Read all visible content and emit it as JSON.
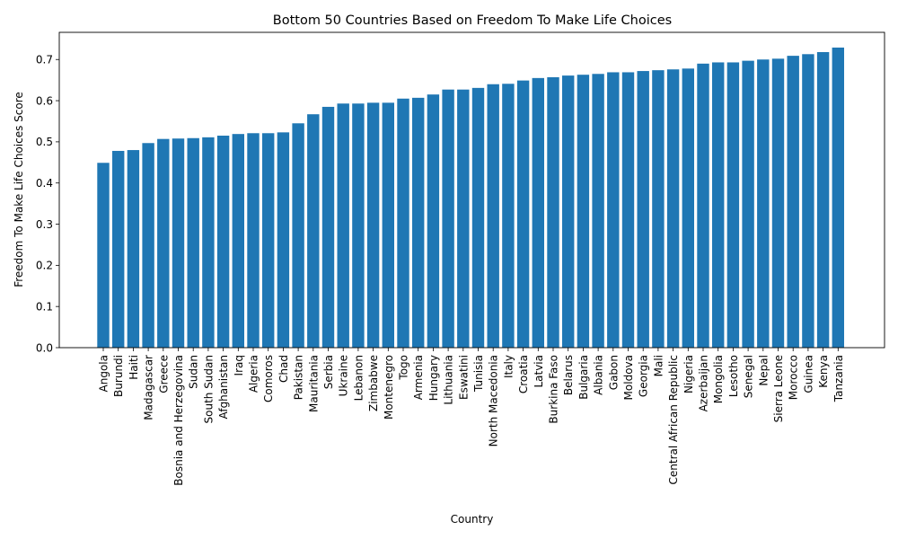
{
  "chart_data": {
    "type": "bar",
    "title": "Bottom 50 Countries Based on Freedom To Make Life Choices",
    "xlabel": "Country",
    "ylabel": "Freedom To Make Life Choices Score",
    "ylim": [
      0,
      0.766
    ],
    "yticks": [
      "0.0",
      "0.1",
      "0.2",
      "0.3",
      "0.4",
      "0.5",
      "0.6",
      "0.7"
    ],
    "ytick_values": [
      0.0,
      0.1,
      0.2,
      0.3,
      0.4,
      0.5,
      0.6,
      0.7
    ],
    "grid": false,
    "bar_color": "#1f77b4",
    "categories": [
      "Angola",
      "Burundi",
      "Haiti",
      "Madagascar",
      "Greece",
      "Bosnia and Herzegovina",
      "Sudan",
      "South Sudan",
      "Afghanistan",
      "Iraq",
      "Algeria",
      "Comoros",
      "Chad",
      "Pakistan",
      "Mauritania",
      "Serbia",
      "Ukraine",
      "Lebanon",
      "Zimbabwe",
      "Montenegro",
      "Togo",
      "Armenia",
      "Hungary",
      "Lithuania",
      "Eswatini",
      "Tunisia",
      "North Macedonia",
      "Italy",
      "Croatia",
      "Latvia",
      "Burkina Faso",
      "Belarus",
      "Bulgaria",
      "Albania",
      "Gabon",
      "Moldova",
      "Georgia",
      "Mali",
      "Central African Republic",
      "Nigeria",
      "Azerbaijan",
      "Mongolia",
      "Lesotho",
      "Senegal",
      "Nepal",
      "Sierra Leone",
      "Morocco",
      "Guinea",
      "Kenya",
      "Tanzania"
    ],
    "values": [
      0.449,
      0.478,
      0.48,
      0.497,
      0.507,
      0.508,
      0.509,
      0.511,
      0.515,
      0.519,
      0.521,
      0.521,
      0.523,
      0.545,
      0.567,
      0.585,
      0.593,
      0.593,
      0.595,
      0.595,
      0.605,
      0.607,
      0.615,
      0.627,
      0.627,
      0.631,
      0.64,
      0.641,
      0.649,
      0.655,
      0.657,
      0.661,
      0.663,
      0.665,
      0.669,
      0.669,
      0.672,
      0.674,
      0.676,
      0.678,
      0.69,
      0.693,
      0.693,
      0.697,
      0.7,
      0.702,
      0.709,
      0.713,
      0.718,
      0.729
    ]
  }
}
